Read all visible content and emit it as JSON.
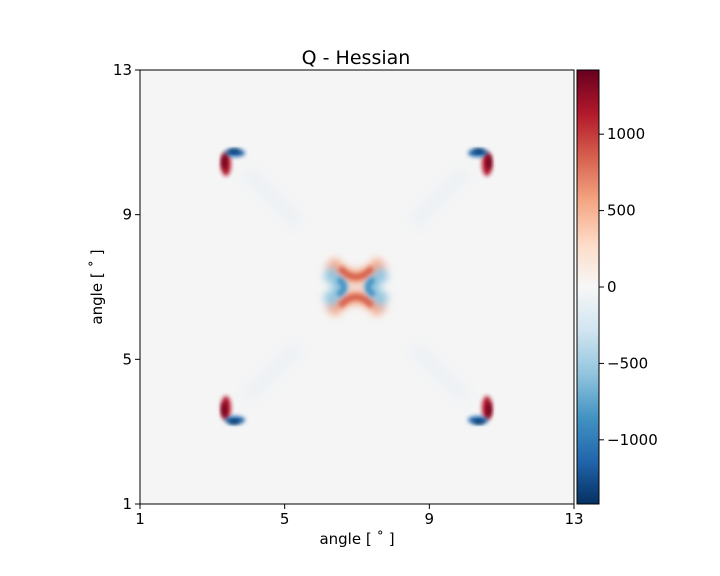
{
  "chart_data": {
    "type": "heatmap",
    "title": "Q - Hessian",
    "xlabel": "angle [$^\\circ$]",
    "ylabel": "angle [$^\\circ$]",
    "xlabel_text": "angle [ ˚ ]",
    "ylabel_text": "angle [ ˚ ]",
    "xlim": [
      1,
      13
    ],
    "ylim": [
      1,
      13
    ],
    "xticks": [
      1,
      5,
      9,
      13
    ],
    "yticks": [
      1,
      5,
      9,
      13
    ],
    "colormap": "RdBu_r",
    "colorbar": {
      "vmin": -1420,
      "vmax": 1420,
      "ticks": [
        -1000,
        -500,
        0,
        500,
        1000
      ],
      "tick_labels": [
        "−1000",
        "−500",
        "0",
        "500",
        "1000"
      ]
    },
    "background_value": 0,
    "features": [
      {
        "description": "central cross",
        "x": 7,
        "y": 7,
        "positive_lobes": "top-bottom",
        "negative_lobes": "left-right",
        "peak": 1000
      },
      {
        "description": "top-left source",
        "x": 3.5,
        "y": 10.3,
        "peak_positive": 1400,
        "peak_negative": -1400
      },
      {
        "description": "top-right source",
        "x": 10.5,
        "y": 10.3,
        "peak_positive": 1400,
        "peak_negative": -1400
      },
      {
        "description": "bottom-left source",
        "x": 3.5,
        "y": 3.7,
        "peak_positive": 1400,
        "peak_negative": -1400
      },
      {
        "description": "bottom-right source",
        "x": 10.5,
        "y": 3.7,
        "peak_positive": 1400,
        "peak_negative": -1400
      }
    ],
    "grid": false
  }
}
